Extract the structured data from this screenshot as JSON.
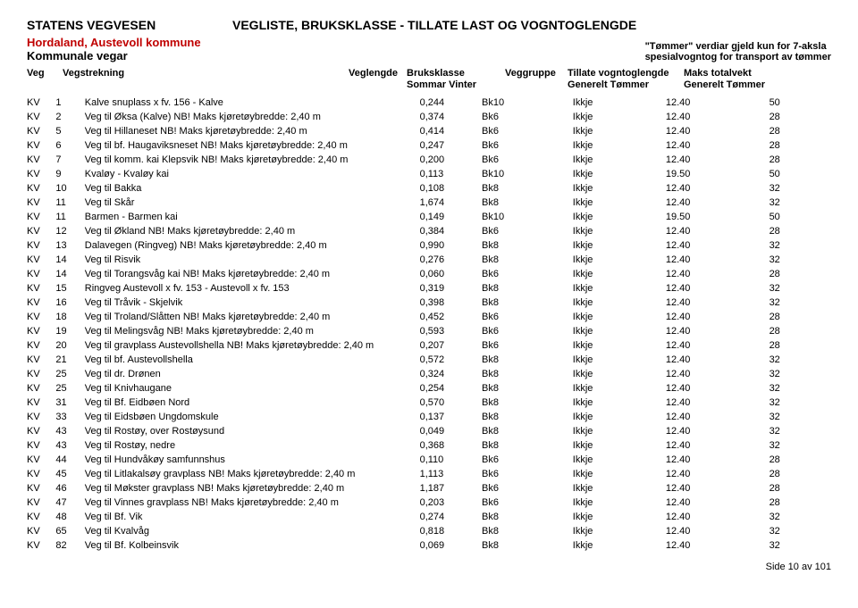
{
  "header": {
    "org": "STATENS VEGVESEN",
    "title": "VEGLISTE, BRUKSKLASSE - TILLATE LAST OG VOGNTOGLENGDE",
    "region": "Hordaland, Austevoll kommune",
    "subtitle": "Kommunale vegar",
    "note1": "\"Tømmer\" verdiar gjeld kun for 7-aksla",
    "note2": "spesialvogntog for transport av tømmer"
  },
  "columns": {
    "veg": "Veg",
    "vegstrekning": "Vegstrekning",
    "veglengde": "Veglengde",
    "bruksklasse": "Bruksklasse",
    "bruksklasse_sub": "Sommar  Vinter",
    "veggruppe": "Veggruppe",
    "tillate": "Tillate vogntoglengde",
    "tillate_sub": "Generelt      Tømmer",
    "maks": "Maks totalvekt",
    "maks_sub": "Generelt Tømmer"
  },
  "rows": [
    {
      "kv": "KV",
      "n": "1",
      "d": "Kalve snuplass x fv. 156 - Kalve",
      "len": "0,244",
      "bk": "Bk10",
      "grp": "Ikkje",
      "gen": "12.40",
      "tom": "50"
    },
    {
      "kv": "KV",
      "n": "2",
      "d": "Veg til Øksa (Kalve) NB! Maks kjøretøybredde: 2,40 m",
      "len": "0,374",
      "bk": "Bk6",
      "grp": "Ikkje",
      "gen": "12.40",
      "tom": "28"
    },
    {
      "kv": "KV",
      "n": "5",
      "d": "Veg til Hillaneset NB! Maks kjøretøybredde: 2,40 m",
      "len": "0,414",
      "bk": "Bk6",
      "grp": "Ikkje",
      "gen": "12.40",
      "tom": "28"
    },
    {
      "kv": "KV",
      "n": "6",
      "d": "Veg til bf. Haugaviksneset NB! Maks kjøretøybredde: 2,40 m",
      "len": "0,247",
      "bk": "Bk6",
      "grp": "Ikkje",
      "gen": "12.40",
      "tom": "28"
    },
    {
      "kv": "KV",
      "n": "7",
      "d": "Veg til komm. kai Klepsvik NB! Maks kjøretøybredde: 2,40 m",
      "len": "0,200",
      "bk": "Bk6",
      "grp": "Ikkje",
      "gen": "12.40",
      "tom": "28"
    },
    {
      "kv": "KV",
      "n": "9",
      "d": "Kvaløy - Kvaløy kai",
      "len": "0,113",
      "bk": "Bk10",
      "grp": "Ikkje",
      "gen": "19.50",
      "tom": "50"
    },
    {
      "kv": "KV",
      "n": "10",
      "d": "Veg til Bakka",
      "len": "0,108",
      "bk": "Bk8",
      "grp": "Ikkje",
      "gen": "12.40",
      "tom": "32"
    },
    {
      "kv": "KV",
      "n": "11",
      "d": "Veg til Skår",
      "len": "1,674",
      "bk": "Bk8",
      "grp": "Ikkje",
      "gen": "12.40",
      "tom": "32"
    },
    {
      "kv": "KV",
      "n": "11",
      "d": "Barmen - Barmen kai",
      "len": "0,149",
      "bk": "Bk10",
      "grp": "Ikkje",
      "gen": "19.50",
      "tom": "50"
    },
    {
      "kv": "KV",
      "n": "12",
      "d": "Veg til Økland NB! Maks kjøretøybredde: 2,40 m",
      "len": "0,384",
      "bk": "Bk6",
      "grp": "Ikkje",
      "gen": "12.40",
      "tom": "28"
    },
    {
      "kv": "KV",
      "n": "13",
      "d": "Dalavegen (Ringveg) NB! Maks kjøretøybredde: 2,40 m",
      "len": "0,990",
      "bk": "Bk8",
      "grp": "Ikkje",
      "gen": "12.40",
      "tom": "32"
    },
    {
      "kv": "KV",
      "n": "14",
      "d": "Veg til Risvik",
      "len": "0,276",
      "bk": "Bk8",
      "grp": "Ikkje",
      "gen": "12.40",
      "tom": "32"
    },
    {
      "kv": "KV",
      "n": "14",
      "d": "Veg til Torangsvåg kai NB! Maks kjøretøybredde: 2,40 m",
      "len": "0,060",
      "bk": "Bk6",
      "grp": "Ikkje",
      "gen": "12.40",
      "tom": "28"
    },
    {
      "kv": "KV",
      "n": "15",
      "d": "Ringveg Austevoll x fv. 153 -  Austevoll x fv. 153",
      "len": "0,319",
      "bk": "Bk8",
      "grp": "Ikkje",
      "gen": "12.40",
      "tom": "32"
    },
    {
      "kv": "KV",
      "n": "16",
      "d": "Veg til Tråvik - Skjelvik",
      "len": "0,398",
      "bk": "Bk8",
      "grp": "Ikkje",
      "gen": "12.40",
      "tom": "32"
    },
    {
      "kv": "KV",
      "n": "18",
      "d": "Veg til Troland/Slåtten NB! Maks kjøretøybredde: 2,40 m",
      "len": "0,452",
      "bk": "Bk6",
      "grp": "Ikkje",
      "gen": "12.40",
      "tom": "28"
    },
    {
      "kv": "KV",
      "n": "19",
      "d": "Veg til Melingsvåg NB! Maks kjøretøybredde: 2,40 m",
      "len": "0,593",
      "bk": "Bk6",
      "grp": "Ikkje",
      "gen": "12.40",
      "tom": "28"
    },
    {
      "kv": "KV",
      "n": "20",
      "d": "Veg til gravplass Austevollshella NB! Maks kjøretøybredde: 2,40 m",
      "len": "0,207",
      "bk": "Bk6",
      "grp": "Ikkje",
      "gen": "12.40",
      "tom": "28"
    },
    {
      "kv": "KV",
      "n": "21",
      "d": "Veg til bf. Austevollshella",
      "len": "0,572",
      "bk": "Bk8",
      "grp": "Ikkje",
      "gen": "12.40",
      "tom": "32"
    },
    {
      "kv": "KV",
      "n": "25",
      "d": "Veg til dr. Drønen",
      "len": "0,324",
      "bk": "Bk8",
      "grp": "Ikkje",
      "gen": "12.40",
      "tom": "32"
    },
    {
      "kv": "KV",
      "n": "25",
      "d": "Veg til Knivhaugane",
      "len": "0,254",
      "bk": "Bk8",
      "grp": "Ikkje",
      "gen": "12.40",
      "tom": "32"
    },
    {
      "kv": "KV",
      "n": "31",
      "d": "Veg til Bf. Eidbøen Nord",
      "len": "0,570",
      "bk": "Bk8",
      "grp": "Ikkje",
      "gen": "12.40",
      "tom": "32"
    },
    {
      "kv": "KV",
      "n": "33",
      "d": "Veg til Eidsbøen Ungdomskule",
      "len": "0,137",
      "bk": "Bk8",
      "grp": "Ikkje",
      "gen": "12.40",
      "tom": "32"
    },
    {
      "kv": "KV",
      "n": "43",
      "d": "Veg til Rostøy, over Rostøysund",
      "len": "0,049",
      "bk": "Bk8",
      "grp": "Ikkje",
      "gen": "12.40",
      "tom": "32"
    },
    {
      "kv": "KV",
      "n": "43",
      "d": "Veg til Rostøy, nedre",
      "len": "0,368",
      "bk": "Bk8",
      "grp": "Ikkje",
      "gen": "12.40",
      "tom": "32"
    },
    {
      "kv": "KV",
      "n": "44",
      "d": "Veg til Hundvåkøy samfunnshus",
      "len": "0,110",
      "bk": "Bk6",
      "grp": "Ikkje",
      "gen": "12.40",
      "tom": "28"
    },
    {
      "kv": "KV",
      "n": "45",
      "d": "Veg til Litlakalsøy gravplass NB! Maks kjøretøybredde: 2,40 m",
      "len": "1,113",
      "bk": "Bk6",
      "grp": "Ikkje",
      "gen": "12.40",
      "tom": "28"
    },
    {
      "kv": "KV",
      "n": "46",
      "d": "Veg til Møkster gravplass NB! Maks kjøretøybredde: 2,40 m",
      "len": "1,187",
      "bk": "Bk6",
      "grp": "Ikkje",
      "gen": "12.40",
      "tom": "28"
    },
    {
      "kv": "KV",
      "n": "47",
      "d": "Veg til Vinnes gravplass NB! Maks kjøretøybredde: 2,40 m",
      "len": "0,203",
      "bk": "Bk6",
      "grp": "Ikkje",
      "gen": "12.40",
      "tom": "28"
    },
    {
      "kv": "KV",
      "n": "48",
      "d": "Veg til Bf. Vik",
      "len": "0,274",
      "bk": "Bk8",
      "grp": "Ikkje",
      "gen": "12.40",
      "tom": "32"
    },
    {
      "kv": "KV",
      "n": "65",
      "d": "Veg til Kvalvåg",
      "len": "0,818",
      "bk": "Bk8",
      "grp": "Ikkje",
      "gen": "12.40",
      "tom": "32"
    },
    {
      "kv": "KV",
      "n": "82",
      "d": "Veg til Bf. Kolbeinsvik",
      "len": "0,069",
      "bk": "Bk8",
      "grp": "Ikkje",
      "gen": "12.40",
      "tom": "32"
    }
  ],
  "footer": "Side 10 av 101"
}
